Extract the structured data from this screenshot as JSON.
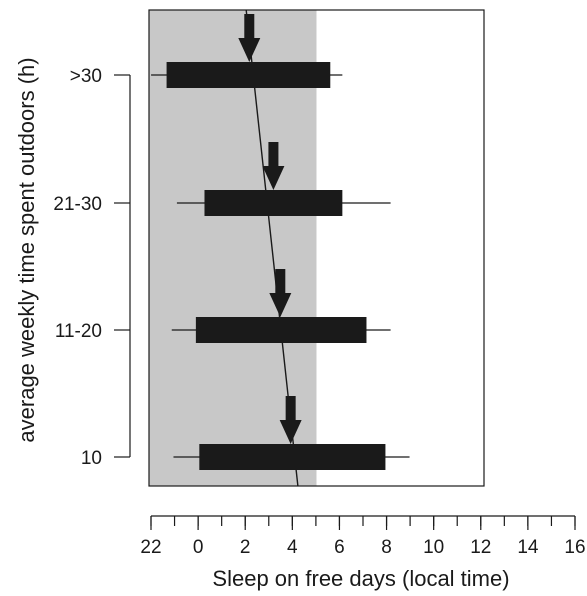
{
  "chart_data": {
    "type": "range-bar",
    "xlabel": "Sleep on free days (local time)",
    "ylabel": "average weekly time spent outdoors (h)",
    "x_ticks": [
      "22",
      "0",
      "2",
      "4",
      "6",
      "8",
      "10",
      "12",
      "14",
      "16"
    ],
    "x_range_hours_from_midnight": [
      -2,
      16
    ],
    "plot_x_range_hours_from_midnight": [
      -2.1,
      14.1
    ],
    "shaded_region": {
      "from": "22",
      "to": "6",
      "color": "#c8c8c8"
    },
    "categories": [
      "10",
      "11-20",
      "21-30",
      ">30"
    ],
    "series": [
      {
        "category": ">30",
        "whisker": [
          "22:00",
          "07:15"
        ],
        "sleep": [
          "22:45",
          "06:40"
        ],
        "midsleep_arrow": "02:45"
      },
      {
        "category": "21-30",
        "whisker": [
          "23:15",
          "09:35"
        ],
        "sleep": [
          "00:35",
          "07:15"
        ],
        "midsleep_arrow": "03:55"
      },
      {
        "category": "11-20",
        "whisker": [
          "23:00",
          "09:35"
        ],
        "sleep": [
          "00:10",
          "08:25"
        ],
        "midsleep_arrow": "04:15"
      },
      {
        "category": "10",
        "whisker": [
          "23:05",
          "10:30"
        ],
        "sleep": [
          "00:20",
          "09:20"
        ],
        "midsleep_arrow": "04:45"
      }
    ],
    "trend_line": {
      "from_hour": 2.6,
      "to_hour": 5.1
    }
  }
}
